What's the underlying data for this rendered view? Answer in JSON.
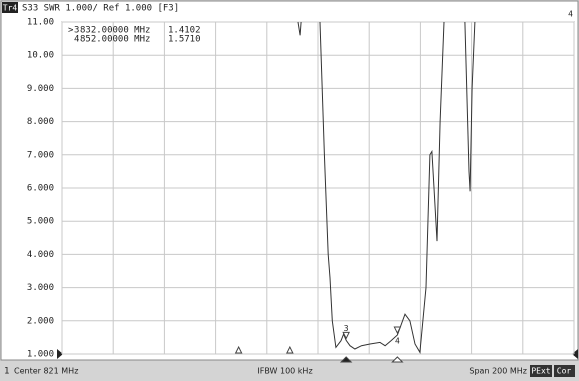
{
  "chart_data": {
    "type": "line",
    "trace_badge": "Tr4",
    "title": "S33 SWR 1.000/ Ref 1.000 [F3]",
    "corner_label": "4",
    "xlim": [
      721,
      921
    ],
    "xticks": [
      721,
      741,
      761,
      781,
      801,
      821,
      841,
      861,
      881,
      901,
      921
    ],
    "ylim": [
      1,
      11
    ],
    "yticks": [
      {
        "value": 1,
        "label": "1.000"
      },
      {
        "value": 2,
        "label": "2.000"
      },
      {
        "value": 3,
        "label": "3.000"
      },
      {
        "value": 4,
        "label": "4.000"
      },
      {
        "value": 5,
        "label": "5.000"
      },
      {
        "value": 6,
        "label": "6.000"
      },
      {
        "value": 7,
        "label": "7.000"
      },
      {
        "value": 8,
        "label": "8.000"
      },
      {
        "value": 9,
        "label": "9.000"
      },
      {
        "value": 10,
        "label": "10.00"
      },
      {
        "value": 11,
        "label": "11.00"
      }
    ],
    "grid": true,
    "series": [
      {
        "color": "#333333",
        "x": [
          813.2,
          814.0,
          814.4,
          821.8,
          823.5,
          825.0,
          825.7,
          826.6,
          828.0,
          830.0,
          831.0,
          832.0,
          833.5,
          835.4,
          838.0,
          841.3,
          845.2,
          847.2,
          849.5,
          852.0,
          855.0,
          856.9,
          858.9,
          860.8,
          863.2,
          864.7,
          865.5,
          866.3,
          867.5,
          868.7,
          870.2,
          878.4,
          880.0,
          880.4,
          881.2,
          882.3
        ],
        "values": [
          11,
          10.6,
          11,
          11,
          7,
          4,
          3.3,
          2,
          1.2,
          1.4,
          1.6,
          1.4102,
          1.25,
          1.15,
          1.25,
          1.3,
          1.35,
          1.25,
          1.4,
          1.571,
          2.2,
          2.0,
          1.3,
          1.05,
          3,
          7.0,
          7.1,
          6.0,
          4.4,
          8,
          11,
          11,
          6.5,
          5.9,
          9,
          11
        ],
        "breaks_after": [
          2,
          30
        ]
      }
    ],
    "markers": [
      {
        "name": "3",
        "active_mark": ">",
        "x": 832,
        "x_label": "832.00000 MHz",
        "value": 1.4102,
        "value_label": "1.4102"
      },
      {
        "name": "4",
        "x": 852,
        "x_label": "852.00000 MHz",
        "value": 1.571,
        "value_label": "1.5710"
      }
    ],
    "other_markers": [
      790,
      810
    ],
    "footer": {
      "channel": "1",
      "center": "Center 821 MHz",
      "ifbw": "IFBW 100 kHz",
      "span": "Span 200 MHz",
      "pext": "PExt",
      "cor": "Cor"
    }
  }
}
